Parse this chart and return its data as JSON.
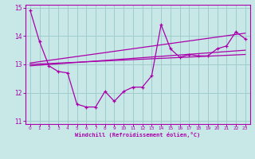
{
  "xlabel": "Windchill (Refroidissement éolien,°C)",
  "bg_color": "#c8e8e8",
  "line_color": "#aa00aa",
  "grid_color": "#a0cccc",
  "hours": [
    0,
    1,
    2,
    3,
    4,
    5,
    6,
    7,
    8,
    9,
    10,
    11,
    12,
    13,
    14,
    15,
    16,
    17,
    18,
    19,
    20,
    21,
    22,
    23
  ],
  "windchill": [
    14.9,
    13.8,
    12.95,
    12.75,
    12.7,
    11.6,
    11.5,
    11.5,
    12.05,
    11.7,
    12.05,
    12.2,
    12.2,
    12.6,
    14.4,
    13.55,
    13.25,
    13.35,
    13.3,
    13.3,
    13.55,
    13.65,
    14.15,
    13.9
  ],
  "trend1_x": [
    0,
    23
  ],
  "trend1_y": [
    13.0,
    13.35
  ],
  "trend2_x": [
    0,
    23
  ],
  "trend2_y": [
    12.95,
    13.5
  ],
  "trend3_x": [
    0,
    23
  ],
  "trend3_y": [
    13.05,
    14.1
  ],
  "ylim": [
    10.9,
    15.1
  ],
  "xlim": [
    -0.5,
    23.5
  ],
  "yticks": [
    11,
    12,
    13,
    14,
    15
  ],
  "xticks": [
    0,
    1,
    2,
    3,
    4,
    5,
    6,
    7,
    8,
    9,
    10,
    11,
    12,
    13,
    14,
    15,
    16,
    17,
    18,
    19,
    20,
    21,
    22,
    23
  ]
}
